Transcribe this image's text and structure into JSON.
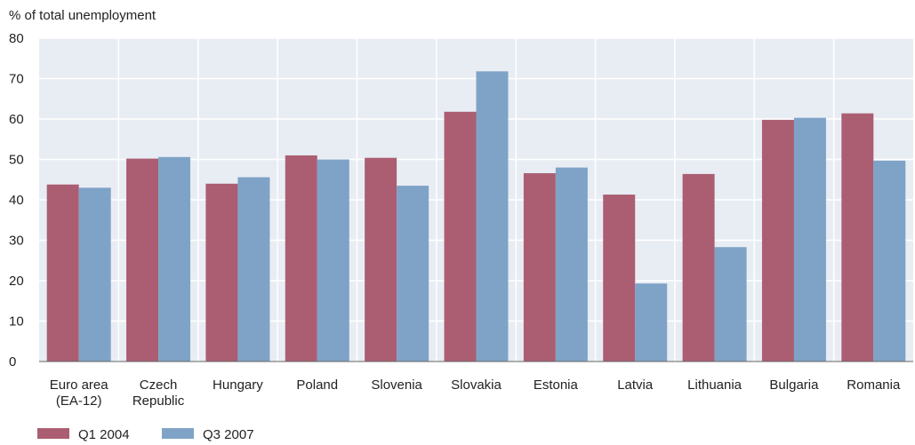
{
  "chart_data": {
    "type": "bar",
    "ylabel": "% of total unemployment",
    "ylim": [
      0,
      80
    ],
    "yticks": [
      0,
      10,
      20,
      30,
      40,
      50,
      60,
      70,
      80
    ],
    "categories": [
      [
        "Euro area",
        "(EA-12)"
      ],
      [
        "Czech",
        "Republic"
      ],
      [
        "Hungary"
      ],
      [
        "Poland"
      ],
      [
        "Slovenia"
      ],
      [
        "Slovakia"
      ],
      [
        "Estonia"
      ],
      [
        "Latvia"
      ],
      [
        "Lithuania"
      ],
      [
        "Bulgaria"
      ],
      [
        "Romania"
      ]
    ],
    "series": [
      {
        "name": "Q1 2004",
        "color": "#ab5e72",
        "values": [
          43.8,
          50.2,
          44.0,
          51.0,
          50.4,
          61.8,
          46.6,
          41.3,
          46.4,
          59.8,
          61.4
        ]
      },
      {
        "name": "Q3 2007",
        "color": "#7fa3c6",
        "values": [
          43.0,
          50.6,
          45.6,
          50.0,
          43.5,
          71.8,
          48.0,
          19.3,
          28.3,
          60.3,
          49.7
        ]
      }
    ],
    "grid": true,
    "legend": "bottom-left",
    "background": "#e8edf4",
    "grid_color": "#ffffff"
  }
}
